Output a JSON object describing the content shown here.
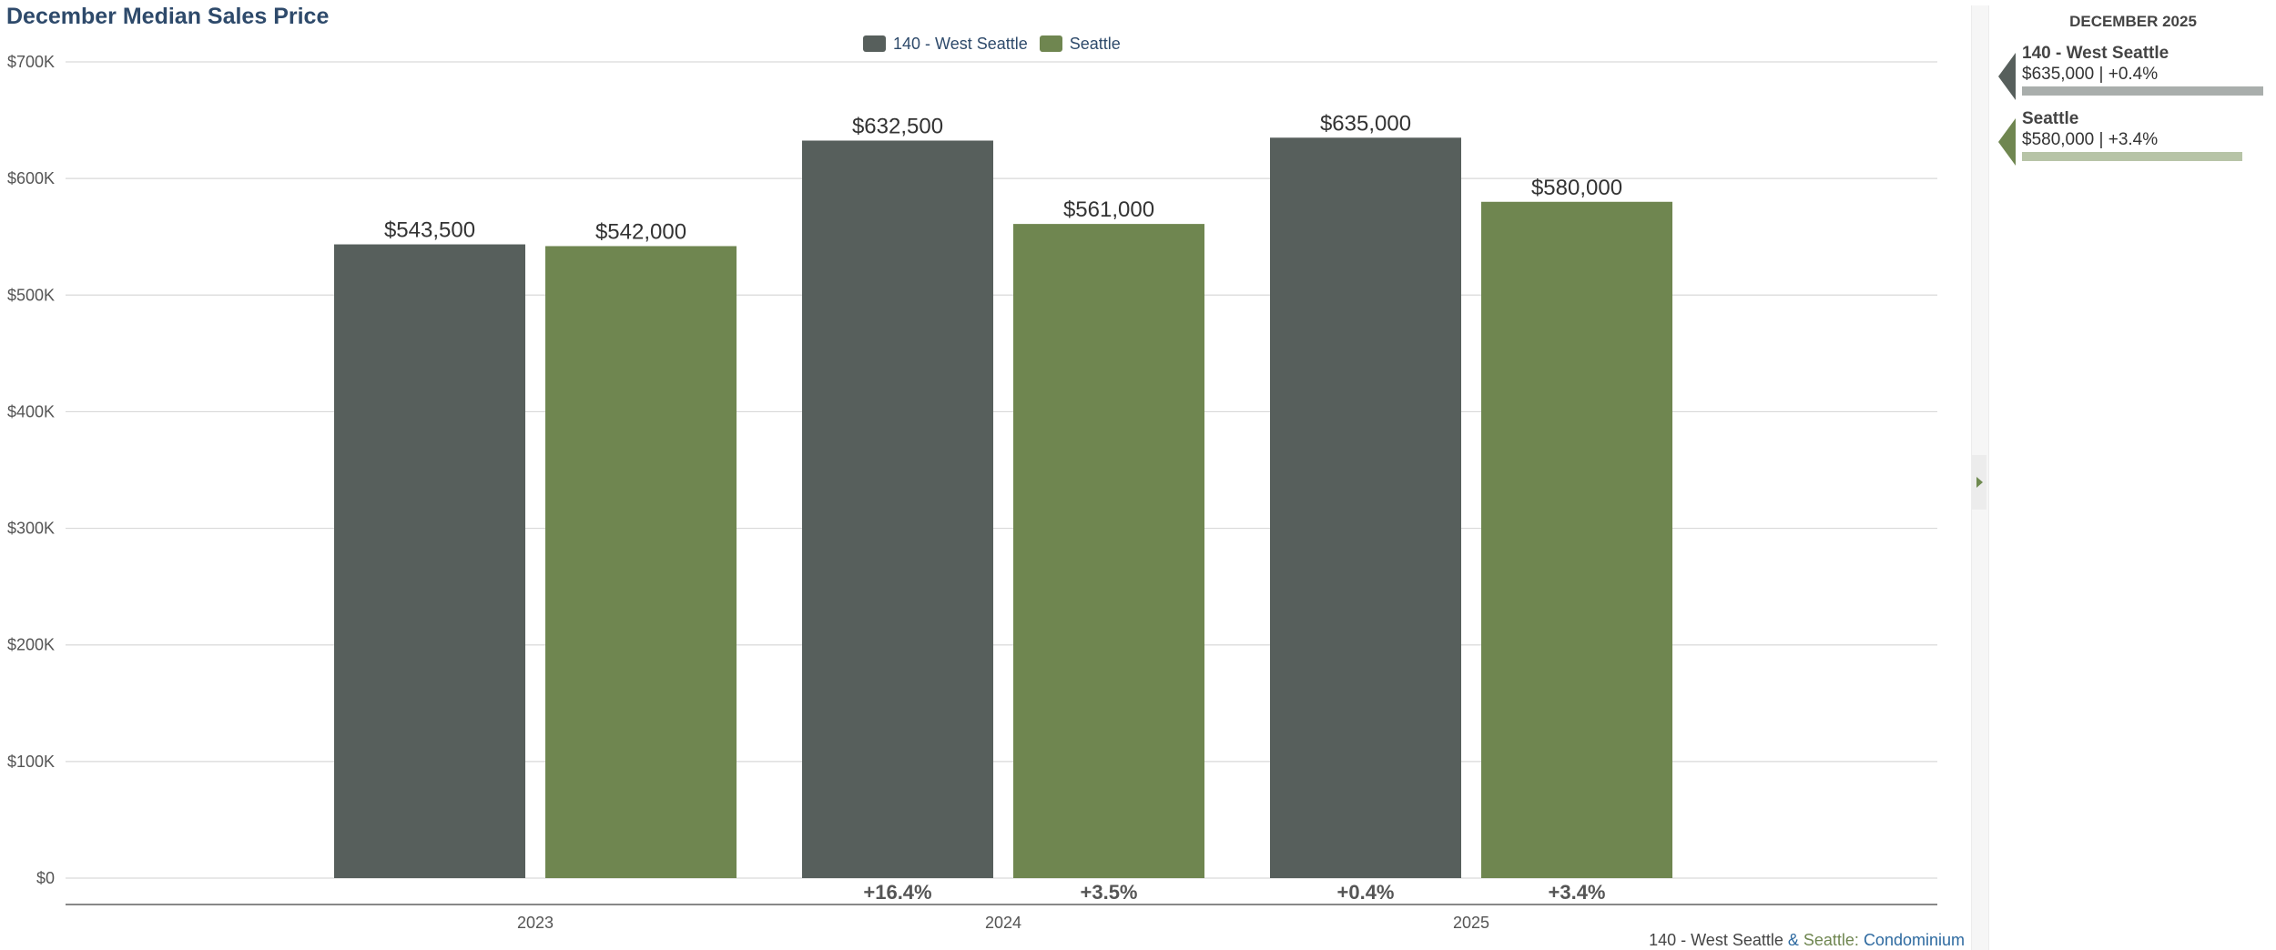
{
  "chart_data": {
    "type": "bar",
    "title": "December Median Sales Price",
    "categories": [
      "2023",
      "2024",
      "2025"
    ],
    "series": [
      {
        "name": "140 - West Seattle",
        "color": "#575f5c",
        "values": [
          543500,
          632500,
          635000
        ],
        "value_labels": [
          "$543,500",
          "$632,500",
          "$635,000"
        ],
        "change_labels": [
          "",
          "+16.4%",
          "+0.4%"
        ]
      },
      {
        "name": "Seattle",
        "color": "#6f8650",
        "values": [
          542000,
          561000,
          580000
        ],
        "value_labels": [
          "$542,000",
          "$561,000",
          "$580,000"
        ],
        "change_labels": [
          "",
          "+3.5%",
          "+3.4%"
        ]
      }
    ],
    "ylim": [
      0,
      700000
    ],
    "yticks": [
      0,
      100000,
      200000,
      300000,
      400000,
      500000,
      600000,
      700000
    ],
    "ytick_labels": [
      "$0",
      "$100K",
      "$200K",
      "$300K",
      "$400K",
      "$500K",
      "$600K",
      "$700K"
    ],
    "xlabel": "",
    "ylabel": "",
    "grid": true,
    "legend": "top-center"
  },
  "footer": {
    "area": "140 - West Seattle",
    "joiner": " & ",
    "city": "Seattle",
    "separator": ": ",
    "property_type": "Condominium"
  },
  "side_panel": {
    "heading": "DECEMBER 2025",
    "items": [
      {
        "name": "140 - West Seattle",
        "summary": "$635,000 | +0.4%",
        "value": 635000,
        "color": "#575f5c",
        "bar_color": "#a9aeac"
      },
      {
        "name": "Seattle",
        "summary": "$580,000 | +3.4%",
        "value": 580000,
        "color": "#6f8650",
        "bar_color": "#b7c4a7"
      }
    ]
  },
  "colors": {
    "title": "#2e4a6b",
    "axis_text": "#555555",
    "grid": "#d9d9d9",
    "footer_area": "#444444",
    "footer_city": "#6f8650",
    "footer_type": "#2e6aa0"
  }
}
